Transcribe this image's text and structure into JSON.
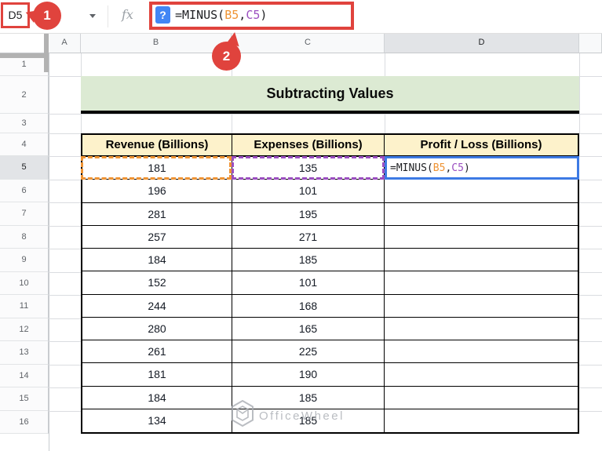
{
  "app": {
    "name_box_value": "D5",
    "fx_label": "fx",
    "help_icon": "?"
  },
  "formula": {
    "prefix": "=MINUS(",
    "ref1": "B5",
    "separator": ",",
    "ref2": "C5",
    "suffix": ")"
  },
  "annotations": {
    "step_1": "1",
    "step_2": "2"
  },
  "grid": {
    "column_headers": [
      "A",
      "B",
      "C",
      "D"
    ],
    "row_headers": [
      "1",
      "2",
      "3",
      "4",
      "5",
      "6",
      "7",
      "8",
      "9",
      "10",
      "11",
      "12",
      "13",
      "14",
      "15",
      "16"
    ]
  },
  "sheet": {
    "title": "Subtracting Values",
    "table": {
      "headers": [
        "Revenue (Billions)",
        "Expenses (Billions)",
        "Profit / Loss (Billions)"
      ],
      "rows": [
        [
          "181",
          "135",
          ""
        ],
        [
          "196",
          "101",
          ""
        ],
        [
          "281",
          "195",
          ""
        ],
        [
          "257",
          "271",
          ""
        ],
        [
          "184",
          "185",
          ""
        ],
        [
          "152",
          "101",
          ""
        ],
        [
          "244",
          "168",
          ""
        ],
        [
          "280",
          "165",
          ""
        ],
        [
          "261",
          "225",
          ""
        ],
        [
          "181",
          "190",
          ""
        ],
        [
          "184",
          "185",
          ""
        ],
        [
          "134",
          "185",
          ""
        ]
      ]
    }
  },
  "watermark": "OfficeWheel",
  "colors": {
    "annotation_red": "#e0433d",
    "title_green": "#dcead3",
    "header_yellow": "#fdf2cb",
    "active_blue": "#3d7ae4",
    "help_blue": "#4286f5",
    "ref1_orange": "#ef9434",
    "ref2_purple": "#9b4fc0",
    "selected_gray": "#e2e4e7"
  }
}
